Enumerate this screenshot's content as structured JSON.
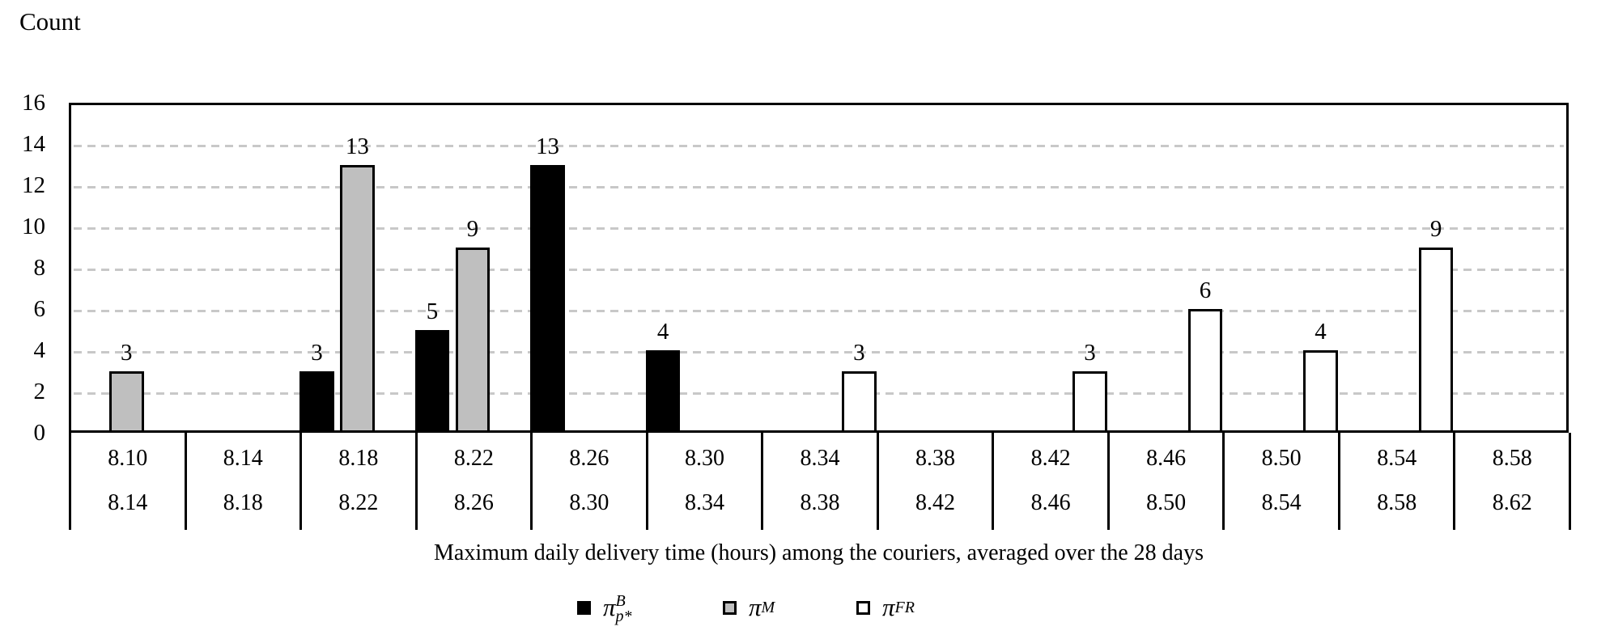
{
  "chart_data": {
    "type": "bar",
    "subtype": "clustered-histogram",
    "y_axis_label": "Count",
    "x_axis_label": "Maximum daily delivery time (hours) among the couriers, averaged over the 28 days",
    "ylim": [
      0,
      16
    ],
    "yticks": [
      0,
      2,
      4,
      6,
      8,
      10,
      12,
      14,
      16
    ],
    "grid": "horizontal-dashed",
    "legend_position": "bottom-center",
    "bins": [
      {
        "lower": "8.10",
        "upper": "8.14"
      },
      {
        "lower": "8.14",
        "upper": "8.18"
      },
      {
        "lower": "8.18",
        "upper": "8.22"
      },
      {
        "lower": "8.22",
        "upper": "8.26"
      },
      {
        "lower": "8.26",
        "upper": "8.30"
      },
      {
        "lower": "8.30",
        "upper": "8.34"
      },
      {
        "lower": "8.34",
        "upper": "8.38"
      },
      {
        "lower": "8.38",
        "upper": "8.42"
      },
      {
        "lower": "8.42",
        "upper": "8.46"
      },
      {
        "lower": "8.46",
        "upper": "8.50"
      },
      {
        "lower": "8.50",
        "upper": "8.54"
      },
      {
        "lower": "8.54",
        "upper": "8.58"
      },
      {
        "lower": "8.58",
        "upper": "8.62"
      }
    ],
    "series": [
      {
        "name": "pi-B-pstar",
        "legend_base": "π",
        "legend_sup": "B",
        "legend_sub": "p*",
        "fill": "#000000",
        "border": "#000000",
        "values": [
          0,
          0,
          3,
          5,
          13,
          4,
          0,
          0,
          0,
          0,
          0,
          0,
          0
        ]
      },
      {
        "name": "pi-M",
        "legend_base": "π",
        "legend_sup": "M",
        "legend_sub": "",
        "fill": "#bfbfbf",
        "border": "#000000",
        "values": [
          3,
          0,
          13,
          9,
          0,
          0,
          0,
          0,
          0,
          0,
          0,
          0,
          0
        ]
      },
      {
        "name": "pi-FR",
        "legend_base": "π",
        "legend_sup": "FR",
        "legend_sub": "",
        "fill": "#ffffff",
        "border": "#000000",
        "values": [
          0,
          0,
          0,
          0,
          0,
          0,
          3,
          0,
          3,
          6,
          4,
          9,
          0
        ]
      }
    ],
    "colors": {
      "axis": "#000000",
      "gridline": "#c8c8c8",
      "background": "#ffffff"
    }
  }
}
